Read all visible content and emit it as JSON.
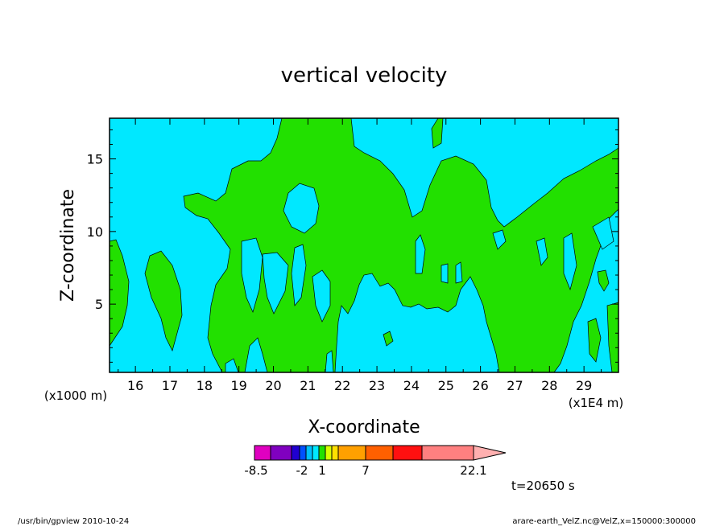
{
  "chart_data": {
    "type": "contour",
    "title": "vertical velocity",
    "xlabel": "X-coordinate",
    "ylabel": "Z-coordinate",
    "x_offset_label": "(x1000 m)",
    "x_scale_label": "(x1E4 m)",
    "xlim": [
      15.25,
      30.0
    ],
    "ylim": [
      0.3,
      17.8
    ],
    "x_ticks": [
      16,
      17,
      18,
      19,
      20,
      21,
      22,
      23,
      24,
      25,
      26,
      27,
      28,
      29
    ],
    "y_ticks": [
      5,
      10,
      15
    ],
    "fields": [
      {
        "name": "background (weak downdraft)",
        "color": "#00E8FF"
      },
      {
        "name": "updraft region",
        "color": "#22E000"
      }
    ],
    "colorbar": {
      "colors": [
        "#E000C0",
        "#8000C0",
        "#2000D0",
        "#0050FF",
        "#00C0FF",
        "#00E8FF",
        "#22E000",
        "#D8FF00",
        "#FFE000",
        "#FFA000",
        "#FF6000",
        "#FF1010",
        "#FF8080",
        "#FFB0B0"
      ],
      "labels": [
        "-8.5",
        "-2",
        "1",
        "7",
        "22.1"
      ]
    },
    "time_label": "t=20650 s",
    "footer_left": "/usr/bin/gpview   2010-10-24",
    "footer_right": "arare-earth_VelZ.nc@VelZ,x=150000:300000"
  }
}
